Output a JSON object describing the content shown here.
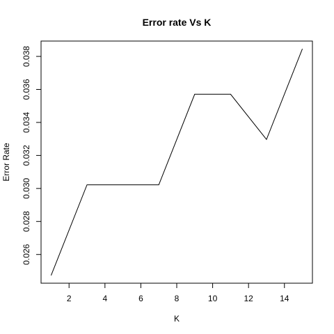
{
  "chart_data": {
    "type": "line",
    "title": "Error rate Vs K",
    "xlabel": "K",
    "ylabel": "Error Rate",
    "xlim": [
      0.44,
      15.56
    ],
    "ylim": [
      0.02426,
      0.03893
    ],
    "x_ticks": [
      2,
      4,
      6,
      8,
      10,
      12,
      14
    ],
    "y_ticks": [
      0.026,
      0.028,
      0.03,
      0.032,
      0.034,
      0.036,
      0.038
    ],
    "y_tick_labels": [
      "0.026",
      "0.028",
      "0.030",
      "0.032",
      "0.034",
      "0.036",
      "0.038"
    ],
    "grid": false,
    "legend": "none",
    "series": [
      {
        "x": [
          1,
          3,
          5,
          7,
          9,
          11,
          13,
          15
        ],
        "values": [
          0.02473,
          0.03022,
          0.03022,
          0.03022,
          0.03571,
          0.03571,
          0.03297,
          0.03846
        ],
        "color": "#000000"
      }
    ]
  }
}
